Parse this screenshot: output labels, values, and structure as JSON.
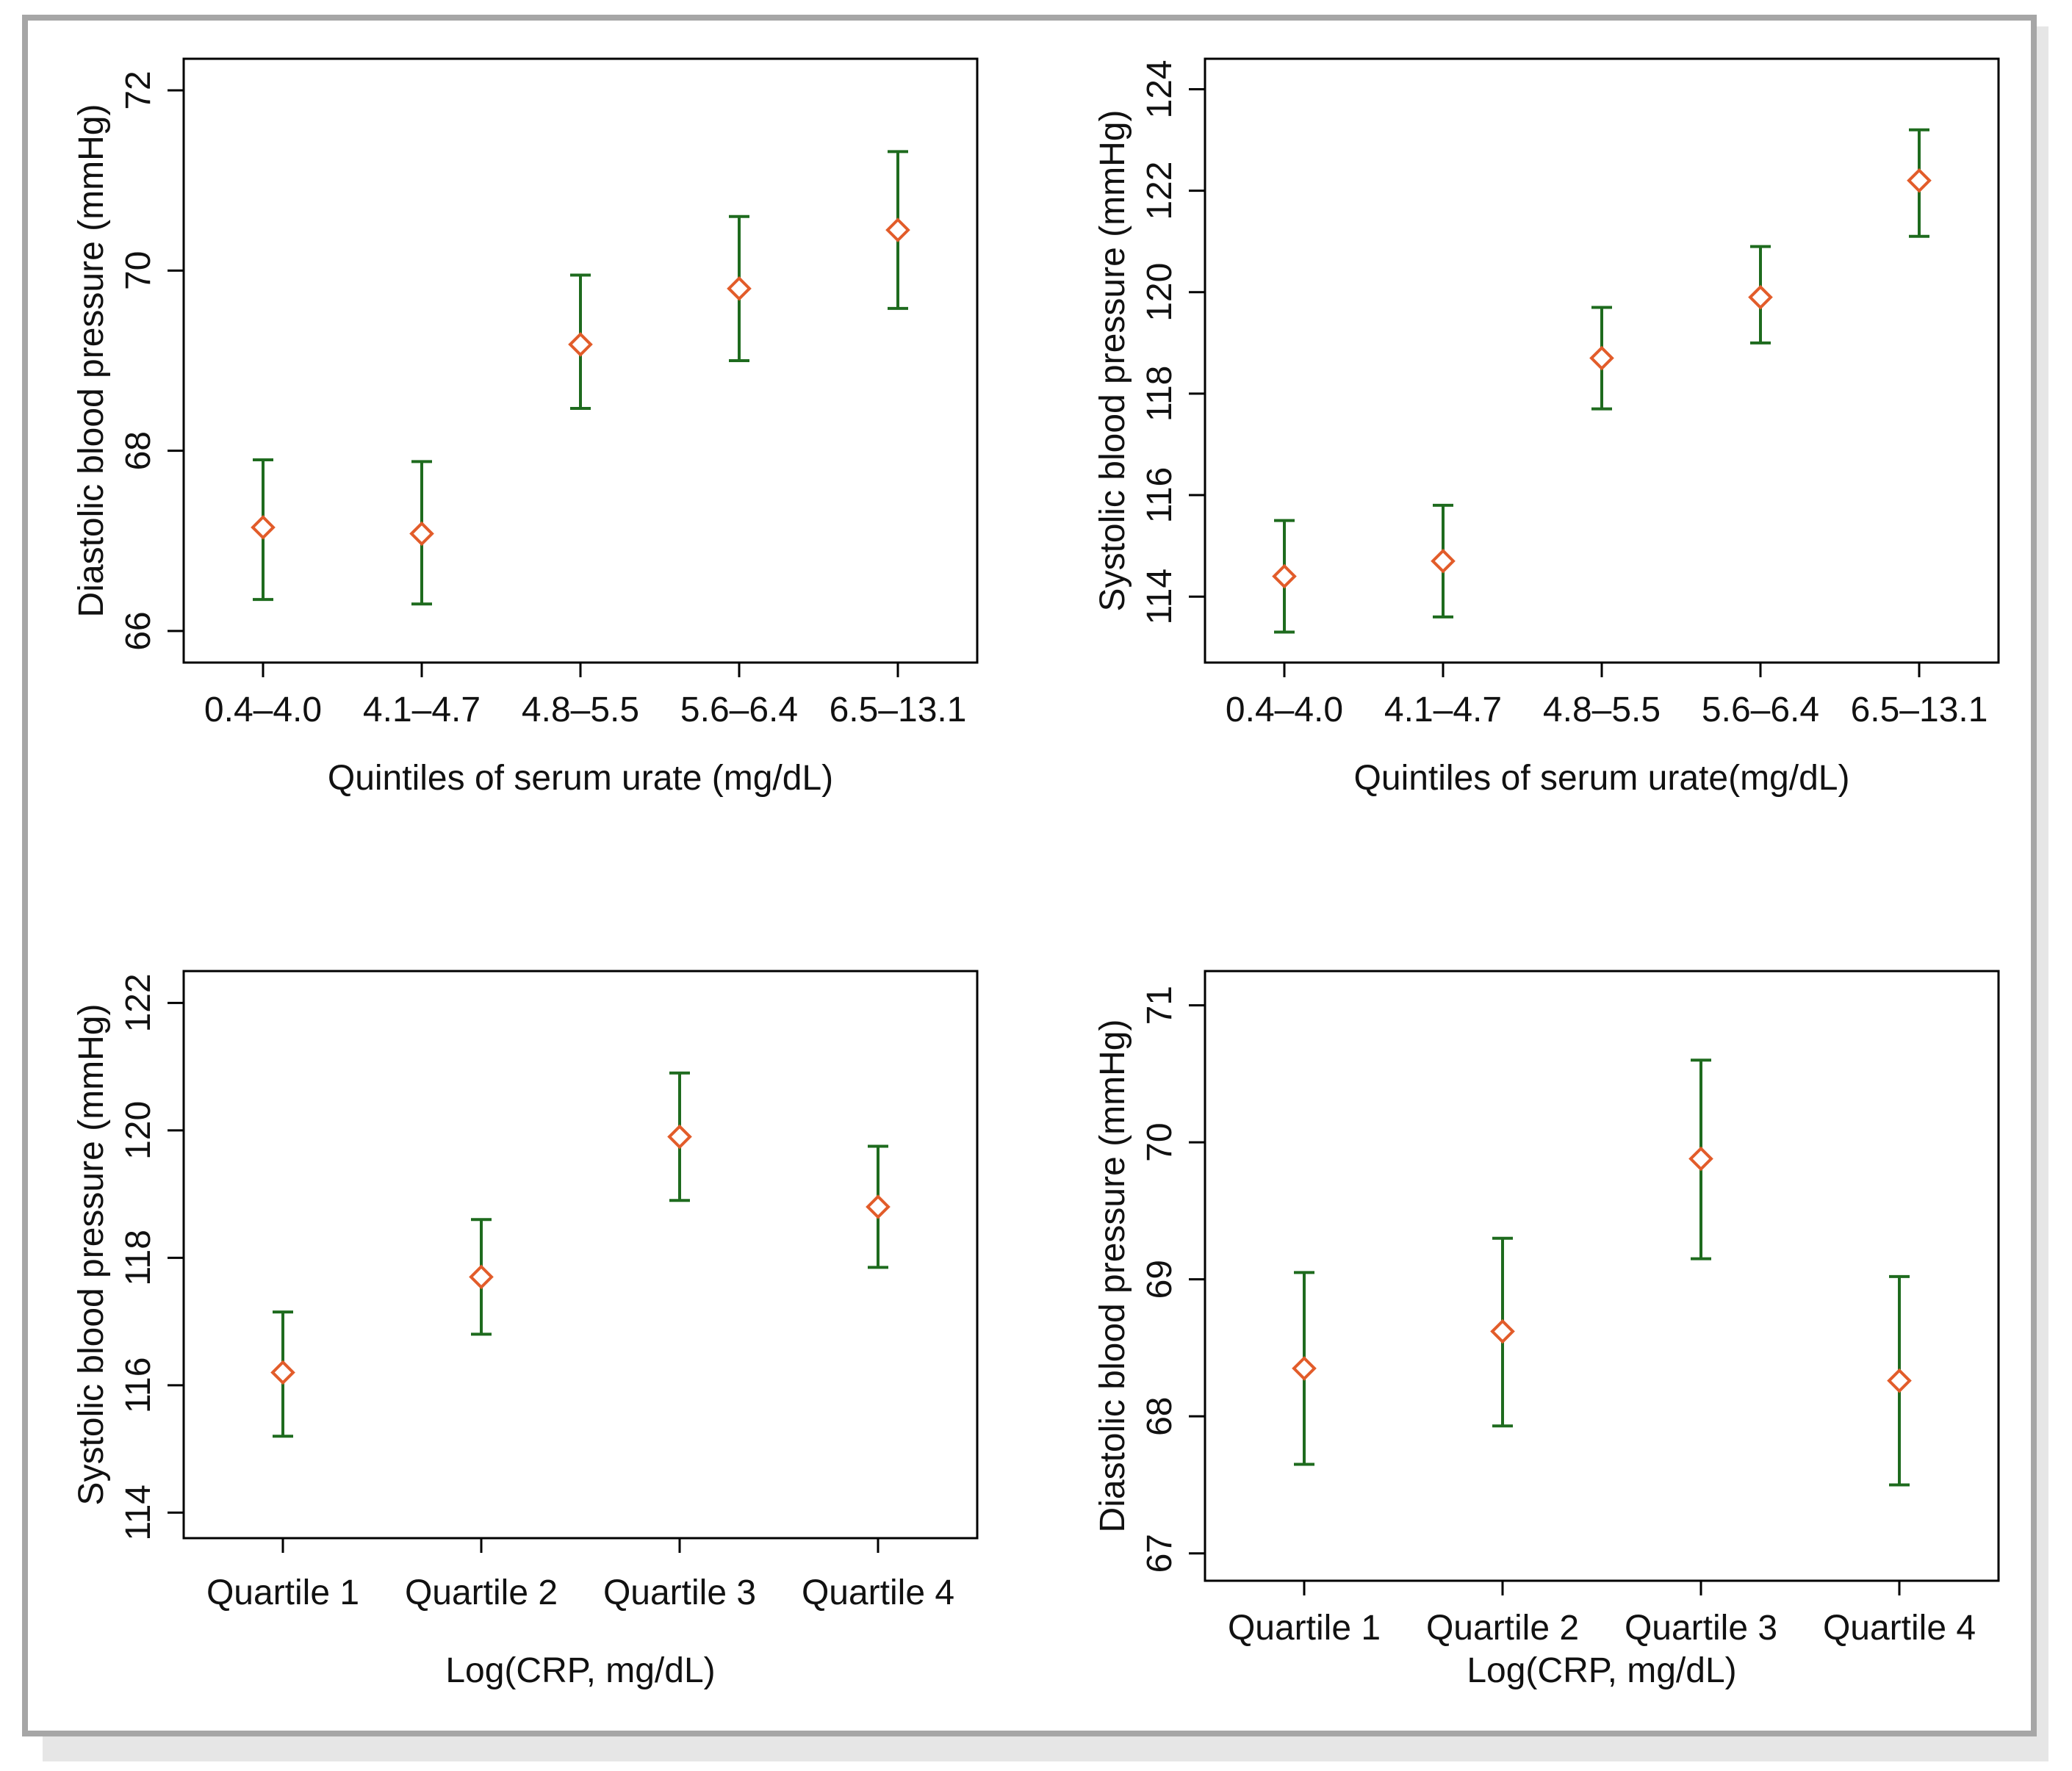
{
  "chart_data": [
    {
      "id": "panel-top-left",
      "type": "scatter",
      "title": "",
      "xlabel": "Quintiles of serum urate (mg/dL)",
      "ylabel": "Diastolic blood pressure (mmHg)",
      "categories": [
        "0.4–4.0",
        "4.1–4.7",
        "4.8–5.5",
        "5.6–6.4",
        "6.5–13.1"
      ],
      "values": [
        67.15,
        67.08,
        69.18,
        69.8,
        70.45
      ],
      "lower": [
        66.35,
        66.3,
        68.47,
        69.0,
        69.58
      ],
      "upper": [
        67.9,
        67.88,
        69.95,
        70.6,
        71.32
      ],
      "ylim": [
        65.65,
        72.35
      ],
      "yticks": [
        66,
        68,
        70,
        72
      ],
      "grid": false,
      "marker_color": "#e25c2a",
      "errorbar_color": "#1e6b1e"
    },
    {
      "id": "panel-top-right",
      "type": "scatter",
      "title": "",
      "xlabel": "Quintiles of serum urate(mg/dL)",
      "ylabel": "Systolic blood pressure (mmHg)",
      "categories": [
        "0.4–4.0",
        "4.1–4.7",
        "4.8–5.5",
        "5.6–6.4",
        "6.5–13.1"
      ],
      "values": [
        114.4,
        114.7,
        118.7,
        119.9,
        122.2
      ],
      "lower": [
        113.3,
        113.6,
        117.7,
        119.0,
        121.1
      ],
      "upper": [
        115.5,
        115.8,
        119.7,
        120.9,
        123.2
      ],
      "ylim": [
        112.7,
        124.6
      ],
      "yticks": [
        114,
        116,
        118,
        120,
        122,
        124
      ],
      "grid": false,
      "marker_color": "#e25c2a",
      "errorbar_color": "#1e6b1e"
    },
    {
      "id": "panel-bottom-left",
      "type": "scatter",
      "title": "",
      "xlabel": "Log(CRP, mg/dL)",
      "ylabel": "Systolic blood pressure (mmHg)",
      "categories": [
        "Quartile 1",
        "Quartile 2",
        "Quartile 3",
        "Quartile 4"
      ],
      "values": [
        116.2,
        117.7,
        119.9,
        118.8
      ],
      "lower": [
        115.2,
        116.8,
        118.9,
        117.85
      ],
      "upper": [
        117.15,
        118.6,
        120.9,
        119.75
      ],
      "ylim": [
        113.6,
        122.5
      ],
      "yticks": [
        114,
        116,
        118,
        120,
        122
      ],
      "grid": false,
      "marker_color": "#e25c2a",
      "errorbar_color": "#1e6b1e"
    },
    {
      "id": "panel-bottom-right",
      "type": "scatter",
      "title": "",
      "xlabel": "Log(CRP, mg/dL)",
      "ylabel": "Diastolic blood pressure (mmHg)",
      "categories": [
        "Quartile 1",
        "Quartile 2",
        "Quartile 3",
        "Quartile 4"
      ],
      "values": [
        68.35,
        68.62,
        69.88,
        68.26
      ],
      "lower": [
        67.65,
        67.93,
        69.15,
        67.5
      ],
      "upper": [
        69.05,
        69.3,
        70.6,
        69.02
      ],
      "ylim": [
        66.8,
        71.25
      ],
      "yticks": [
        67,
        68,
        69,
        70,
        71
      ],
      "grid": false,
      "marker_color": "#e25c2a",
      "errorbar_color": "#1e6b1e"
    }
  ]
}
